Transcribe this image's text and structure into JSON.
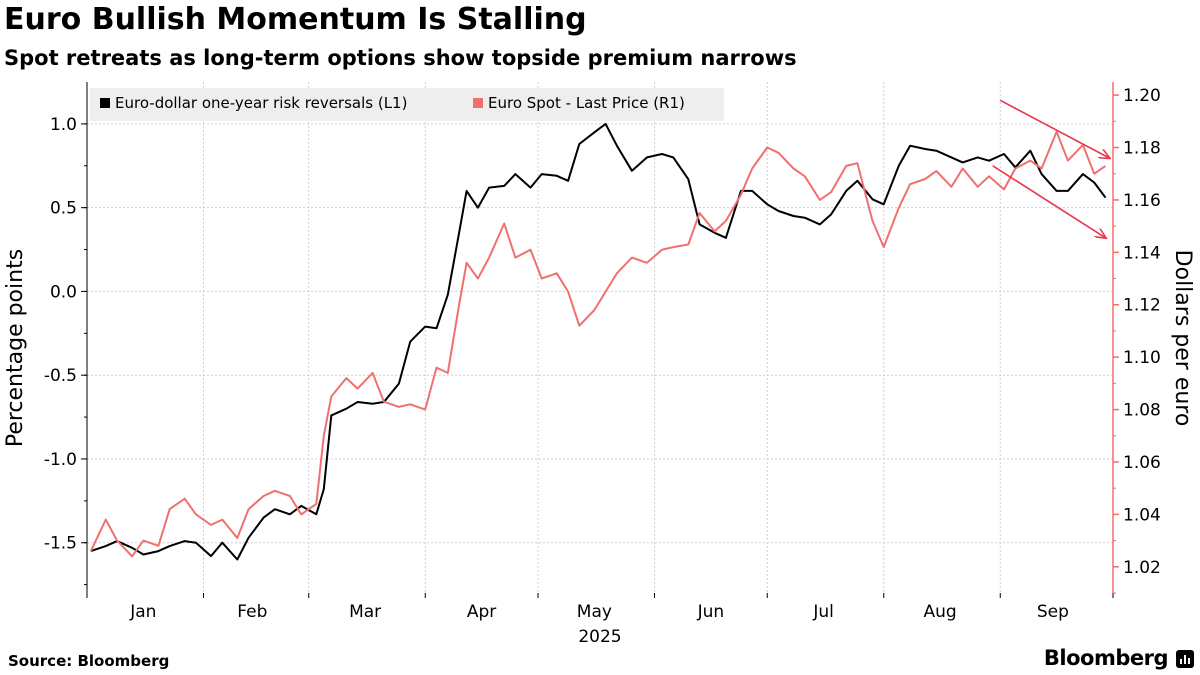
{
  "header": {
    "title": "Euro Bullish Momentum Is Stalling",
    "subtitle": "Spot retreats as long-term options show topside premium narrows"
  },
  "footer": {
    "source": "Source: Bloomberg",
    "brand": "Bloomberg"
  },
  "chart_data": {
    "type": "line",
    "title": "Euro Bullish Momentum Is Stalling",
    "subtitle": "Spot retreats as long-term options show topside premium narrows",
    "xlabel": "2025",
    "ylabel_left": "Percentage points",
    "ylabel_right": "Dollars per euro",
    "x_tick_labels": [
      "Jan",
      "Feb",
      "Mar",
      "Apr",
      "May",
      "Jun",
      "Jul",
      "Aug",
      "Sep"
    ],
    "x_year_label": "2025",
    "y_left": {
      "range": [
        -1.8,
        1.25
      ],
      "ticks": [
        1.0,
        0.5,
        0.0,
        -0.5,
        -1.0,
        -1.5
      ],
      "tick_labels": [
        "1.0",
        "0.5",
        "0.0",
        "-0.5",
        "-1.0",
        "-1.5"
      ]
    },
    "y_right": {
      "range": [
        1.01,
        1.205
      ],
      "ticks": [
        1.2,
        1.18,
        1.16,
        1.14,
        1.12,
        1.1,
        1.08,
        1.06,
        1.04,
        1.02
      ],
      "tick_labels": [
        "1.20",
        "1.18",
        "1.16",
        "1.14",
        "1.12",
        "1.10",
        "1.08",
        "1.06",
        "1.04",
        "1.02"
      ]
    },
    "grid": true,
    "legend_position": "top-left",
    "colors": {
      "risk_reversals": "#000000",
      "spot": "#f07070",
      "arrows": "#e8384f",
      "right_axis": "#f07070"
    },
    "series": [
      {
        "name": "Euro-dollar one-year risk reversals (L1)",
        "axis": "left",
        "color": "#000000",
        "points": [
          [
            "2025-01-02",
            -1.55
          ],
          [
            "2025-01-06",
            -1.52
          ],
          [
            "2025-01-09",
            -1.49
          ],
          [
            "2025-01-13",
            -1.53
          ],
          [
            "2025-01-16",
            -1.57
          ],
          [
            "2025-01-20",
            -1.55
          ],
          [
            "2025-01-23",
            -1.52
          ],
          [
            "2025-01-27",
            -1.49
          ],
          [
            "2025-01-30",
            -1.5
          ],
          [
            "2025-02-03",
            -1.58
          ],
          [
            "2025-02-06",
            -1.5
          ],
          [
            "2025-02-10",
            -1.6
          ],
          [
            "2025-02-13",
            -1.47
          ],
          [
            "2025-02-17",
            -1.35
          ],
          [
            "2025-02-20",
            -1.3
          ],
          [
            "2025-02-24",
            -1.33
          ],
          [
            "2025-02-27",
            -1.28
          ],
          [
            "2025-03-03",
            -1.33
          ],
          [
            "2025-03-05",
            -1.18
          ],
          [
            "2025-03-07",
            -0.74
          ],
          [
            "2025-03-11",
            -0.7
          ],
          [
            "2025-03-14",
            -0.66
          ],
          [
            "2025-03-18",
            -0.67
          ],
          [
            "2025-03-21",
            -0.66
          ],
          [
            "2025-03-25",
            -0.55
          ],
          [
            "2025-03-28",
            -0.3
          ],
          [
            "2025-04-01",
            -0.21
          ],
          [
            "2025-04-04",
            -0.22
          ],
          [
            "2025-04-07",
            -0.02
          ],
          [
            "2025-04-10",
            0.35
          ],
          [
            "2025-04-12",
            0.6
          ],
          [
            "2025-04-15",
            0.5
          ],
          [
            "2025-04-18",
            0.62
          ],
          [
            "2025-04-22",
            0.63
          ],
          [
            "2025-04-25",
            0.7
          ],
          [
            "2025-04-29",
            0.62
          ],
          [
            "2025-05-02",
            0.7
          ],
          [
            "2025-05-06",
            0.69
          ],
          [
            "2025-05-09",
            0.66
          ],
          [
            "2025-05-12",
            0.88
          ],
          [
            "2025-05-16",
            0.95
          ],
          [
            "2025-05-19",
            1.0
          ],
          [
            "2025-05-22",
            0.87
          ],
          [
            "2025-05-26",
            0.72
          ],
          [
            "2025-05-30",
            0.8
          ],
          [
            "2025-06-03",
            0.82
          ],
          [
            "2025-06-06",
            0.8
          ],
          [
            "2025-06-10",
            0.67
          ],
          [
            "2025-06-13",
            0.4
          ],
          [
            "2025-06-17",
            0.35
          ],
          [
            "2025-06-20",
            0.32
          ],
          [
            "2025-06-24",
            0.6
          ],
          [
            "2025-06-27",
            0.6
          ],
          [
            "2025-07-01",
            0.52
          ],
          [
            "2025-07-04",
            0.48
          ],
          [
            "2025-07-08",
            0.45
          ],
          [
            "2025-07-11",
            0.44
          ],
          [
            "2025-07-15",
            0.4
          ],
          [
            "2025-07-18",
            0.46
          ],
          [
            "2025-07-22",
            0.6
          ],
          [
            "2025-07-25",
            0.66
          ],
          [
            "2025-07-29",
            0.55
          ],
          [
            "2025-08-01",
            0.52
          ],
          [
            "2025-08-05",
            0.75
          ],
          [
            "2025-08-08",
            0.87
          ],
          [
            "2025-08-12",
            0.85
          ],
          [
            "2025-08-15",
            0.84
          ],
          [
            "2025-08-19",
            0.8
          ],
          [
            "2025-08-22",
            0.77
          ],
          [
            "2025-08-26",
            0.8
          ],
          [
            "2025-08-29",
            0.78
          ],
          [
            "2025-09-02",
            0.82
          ],
          [
            "2025-09-05",
            0.74
          ],
          [
            "2025-09-09",
            0.84
          ],
          [
            "2025-09-12",
            0.7
          ],
          [
            "2025-09-16",
            0.6
          ],
          [
            "2025-09-19",
            0.6
          ],
          [
            "2025-09-23",
            0.7
          ],
          [
            "2025-09-26",
            0.65
          ],
          [
            "2025-09-29",
            0.56
          ]
        ]
      },
      {
        "name": "Euro Spot - Last Price (R1)",
        "axis": "right",
        "color": "#f07070",
        "points": [
          [
            "2025-01-02",
            1.026
          ],
          [
            "2025-01-06",
            1.038
          ],
          [
            "2025-01-09",
            1.03
          ],
          [
            "2025-01-13",
            1.024
          ],
          [
            "2025-01-16",
            1.03
          ],
          [
            "2025-01-20",
            1.028
          ],
          [
            "2025-01-23",
            1.042
          ],
          [
            "2025-01-27",
            1.046
          ],
          [
            "2025-01-30",
            1.04
          ],
          [
            "2025-02-03",
            1.036
          ],
          [
            "2025-02-06",
            1.038
          ],
          [
            "2025-02-10",
            1.031
          ],
          [
            "2025-02-13",
            1.042
          ],
          [
            "2025-02-17",
            1.047
          ],
          [
            "2025-02-20",
            1.049
          ],
          [
            "2025-02-24",
            1.047
          ],
          [
            "2025-02-27",
            1.04
          ],
          [
            "2025-03-03",
            1.044
          ],
          [
            "2025-03-05",
            1.07
          ],
          [
            "2025-03-07",
            1.085
          ],
          [
            "2025-03-11",
            1.092
          ],
          [
            "2025-03-14",
            1.088
          ],
          [
            "2025-03-18",
            1.094
          ],
          [
            "2025-03-21",
            1.083
          ],
          [
            "2025-03-25",
            1.081
          ],
          [
            "2025-03-28",
            1.082
          ],
          [
            "2025-04-01",
            1.08
          ],
          [
            "2025-04-04",
            1.096
          ],
          [
            "2025-04-07",
            1.094
          ],
          [
            "2025-04-10",
            1.12
          ],
          [
            "2025-04-12",
            1.136
          ],
          [
            "2025-04-15",
            1.13
          ],
          [
            "2025-04-18",
            1.138
          ],
          [
            "2025-04-22",
            1.151
          ],
          [
            "2025-04-25",
            1.138
          ],
          [
            "2025-04-29",
            1.141
          ],
          [
            "2025-05-02",
            1.13
          ],
          [
            "2025-05-06",
            1.132
          ],
          [
            "2025-05-09",
            1.125
          ],
          [
            "2025-05-12",
            1.112
          ],
          [
            "2025-05-16",
            1.118
          ],
          [
            "2025-05-19",
            1.125
          ],
          [
            "2025-05-22",
            1.132
          ],
          [
            "2025-05-26",
            1.138
          ],
          [
            "2025-05-30",
            1.136
          ],
          [
            "2025-06-03",
            1.141
          ],
          [
            "2025-06-06",
            1.142
          ],
          [
            "2025-06-10",
            1.143
          ],
          [
            "2025-06-13",
            1.155
          ],
          [
            "2025-06-17",
            1.148
          ],
          [
            "2025-06-20",
            1.152
          ],
          [
            "2025-06-24",
            1.162
          ],
          [
            "2025-06-27",
            1.172
          ],
          [
            "2025-07-01",
            1.18
          ],
          [
            "2025-07-04",
            1.178
          ],
          [
            "2025-07-08",
            1.172
          ],
          [
            "2025-07-11",
            1.169
          ],
          [
            "2025-07-15",
            1.16
          ],
          [
            "2025-07-18",
            1.163
          ],
          [
            "2025-07-22",
            1.173
          ],
          [
            "2025-07-25",
            1.174
          ],
          [
            "2025-07-29",
            1.152
          ],
          [
            "2025-08-01",
            1.142
          ],
          [
            "2025-08-05",
            1.157
          ],
          [
            "2025-08-08",
            1.166
          ],
          [
            "2025-08-12",
            1.168
          ],
          [
            "2025-08-15",
            1.171
          ],
          [
            "2025-08-19",
            1.165
          ],
          [
            "2025-08-22",
            1.172
          ],
          [
            "2025-08-26",
            1.165
          ],
          [
            "2025-08-29",
            1.169
          ],
          [
            "2025-09-02",
            1.164
          ],
          [
            "2025-09-05",
            1.172
          ],
          [
            "2025-09-09",
            1.175
          ],
          [
            "2025-09-12",
            1.172
          ],
          [
            "2025-09-16",
            1.186
          ],
          [
            "2025-09-19",
            1.175
          ],
          [
            "2025-09-23",
            1.181
          ],
          [
            "2025-09-26",
            1.17
          ],
          [
            "2025-09-29",
            1.173
          ]
        ]
      }
    ],
    "annotations": [
      {
        "type": "arrow",
        "description": "downward-pointing red arrow over Euro Spot highs",
        "from": [
          "2025-09-01",
          1.198
        ],
        "to": [
          "2025-09-30",
          1.176
        ]
      },
      {
        "type": "arrow",
        "description": "downward-pointing red arrow over risk reversal highs",
        "from": [
          "2025-08-30",
          0.75
        ],
        "to": [
          "2025-09-29",
          0.32
        ]
      }
    ]
  }
}
